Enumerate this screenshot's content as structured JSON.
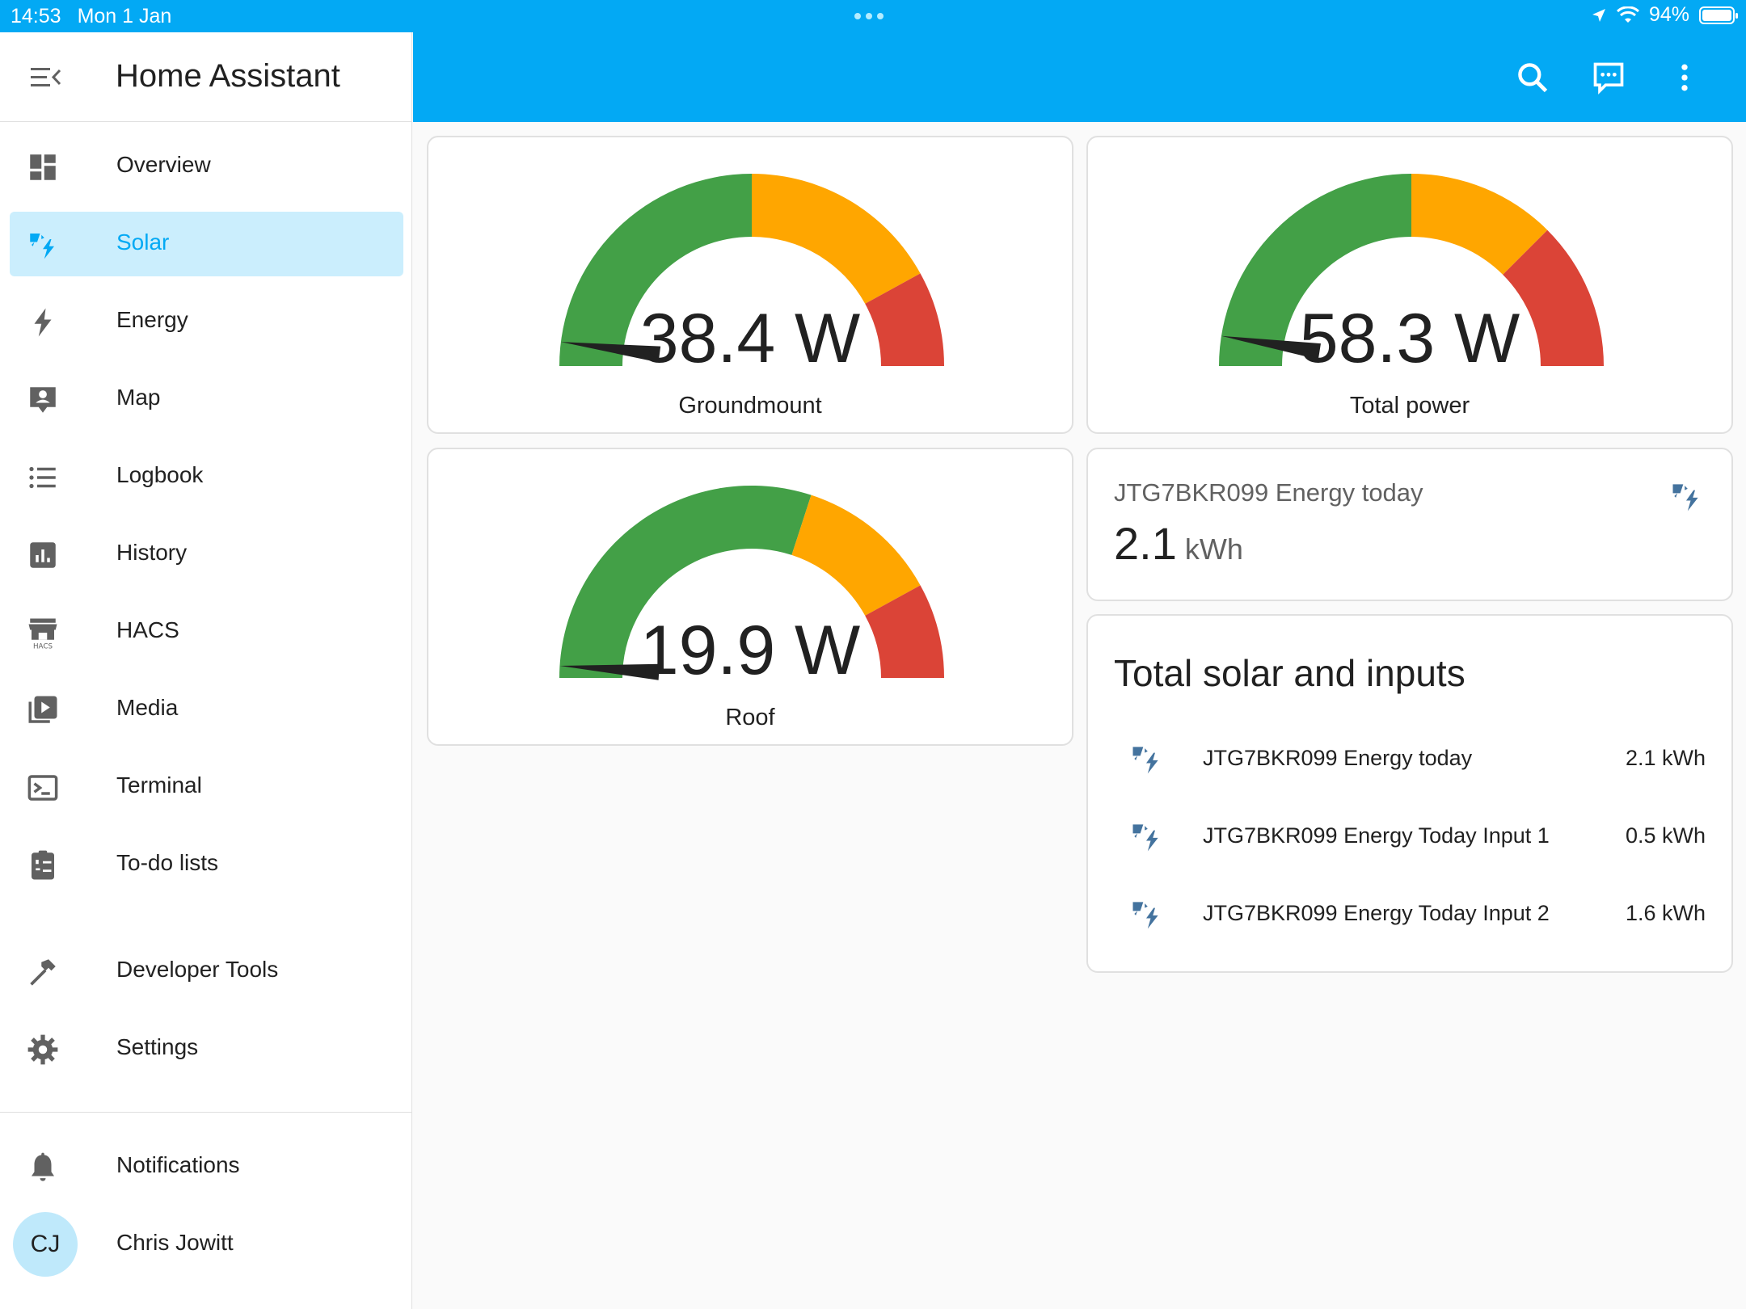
{
  "status_bar": {
    "time": "14:53",
    "date": "Mon 1 Jan",
    "battery": "94%"
  },
  "app": {
    "title": "Home Assistant"
  },
  "sidebar": {
    "items": [
      {
        "label": "Overview",
        "icon": "dashboard-icon"
      },
      {
        "label": "Solar",
        "icon": "solar-power-icon",
        "active": true
      },
      {
        "label": "Energy",
        "icon": "lightning-bolt-icon"
      },
      {
        "label": "Map",
        "icon": "map-account-icon"
      },
      {
        "label": "Logbook",
        "icon": "logbook-list-icon"
      },
      {
        "label": "History",
        "icon": "chart-box-icon"
      },
      {
        "label": "HACS",
        "icon": "hacs-store-icon"
      },
      {
        "label": "Media",
        "icon": "play-box-multiple-icon"
      },
      {
        "label": "Terminal",
        "icon": "console-icon"
      },
      {
        "label": "To-do lists",
        "icon": "clipboard-list-icon"
      }
    ],
    "tools": [
      {
        "label": "Developer Tools",
        "icon": "hammer-icon"
      },
      {
        "label": "Settings",
        "icon": "cog-icon"
      }
    ],
    "footer": {
      "notifications": "Notifications",
      "user_initials": "CJ",
      "user_name": "Chris Jowitt"
    }
  },
  "toolbar": {
    "icons": [
      "search-icon",
      "assist-chat-icon",
      "more-vertical-icon"
    ]
  },
  "gauges": [
    {
      "value": "38.4 W",
      "name": "Groundmount",
      "level": 0.04
    },
    {
      "value": "58.3 W",
      "name": "Total power",
      "level": 0.05
    },
    {
      "value": "19.9 W",
      "name": "Roof",
      "level": 0.02
    }
  ],
  "entity_card": {
    "title": "JTG7BKR099 Energy today",
    "value": "2.1",
    "unit": "kWh",
    "icon": "solar-power-icon"
  },
  "entities_card": {
    "title": "Total solar and inputs",
    "rows": [
      {
        "name": "JTG7BKR099 Energy today",
        "value": "2.1 kWh"
      },
      {
        "name": "JTG7BKR099 Energy Today Input 1",
        "value": "0.5 kWh"
      },
      {
        "name": "JTG7BKR099 Energy Today Input 2",
        "value": "1.6 kWh"
      }
    ]
  },
  "colors": {
    "accent": "#03a9f4",
    "gauge_green": "#43a047",
    "gauge_orange": "#ffa600",
    "gauge_red": "#db4437",
    "needle": "#212121",
    "icon_blue": "#44739e",
    "icon_grey": "#616161"
  }
}
